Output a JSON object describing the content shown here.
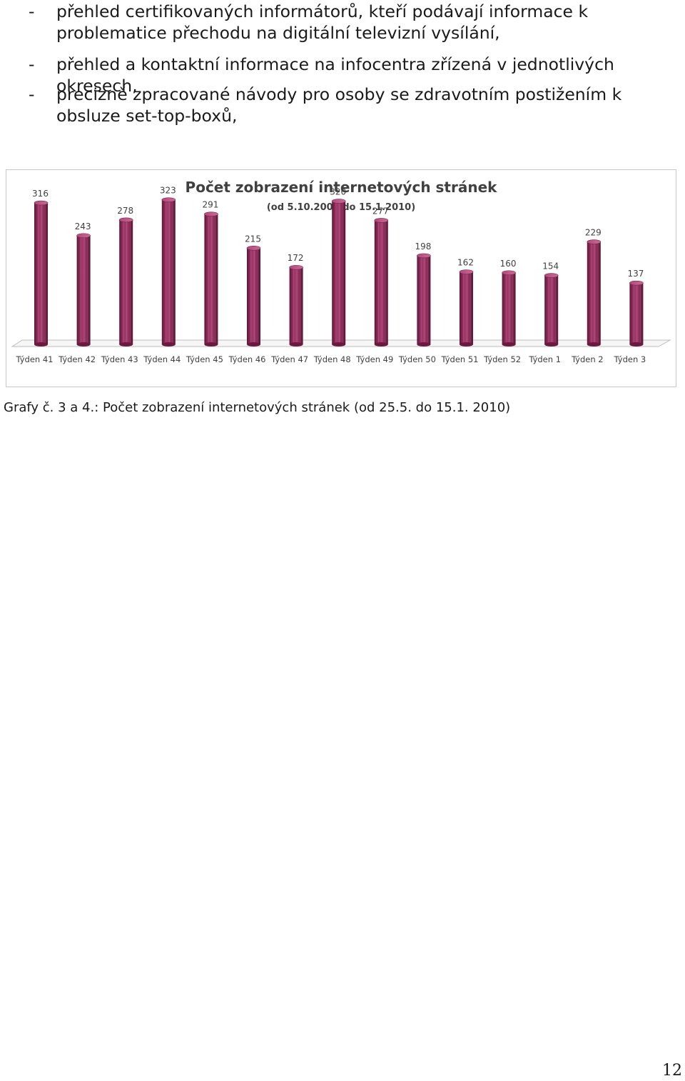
{
  "bullets": [
    {
      "dash": "-",
      "text": "přehled certifikovaných informátorů, kteří podávají informace k problematice přechodu na digitální televizní vysílání,"
    },
    {
      "dash": "-",
      "text": "přehled a kontaktní informace na infocentra zřízená v jednotlivých okresech,"
    },
    {
      "dash": "-",
      "text": "precizně zpracované návody pro osoby se zdravotním postižením k obsluze set-top-boxů,"
    }
  ],
  "chart_data": {
    "type": "bar",
    "title": "Počet zobrazení internetových stránek",
    "subtitle": "(od 5.10.2009 do 15.1.2010)",
    "categories": [
      "Týden 41",
      "Týden 42",
      "Týden 43",
      "Týden 44",
      "Týden 45",
      "Týden 46",
      "Týden 47",
      "Týden 48",
      "Týden 49",
      "Týden 50",
      "Týden 51",
      "Týden 52",
      "Týden 1",
      "Týden 2",
      "Týden 3"
    ],
    "values": [
      316,
      243,
      278,
      323,
      291,
      215,
      172,
      320,
      277,
      198,
      162,
      160,
      154,
      229,
      137
    ],
    "bar_color": "#8e2a58",
    "style": "3d-cylinder",
    "grid": false,
    "legend": "none"
  },
  "caption": "Grafy č. 3 a 4.: Počet zobrazení internetových stránek (od 25.5. do 15.1. 2010)",
  "page_number": "12"
}
